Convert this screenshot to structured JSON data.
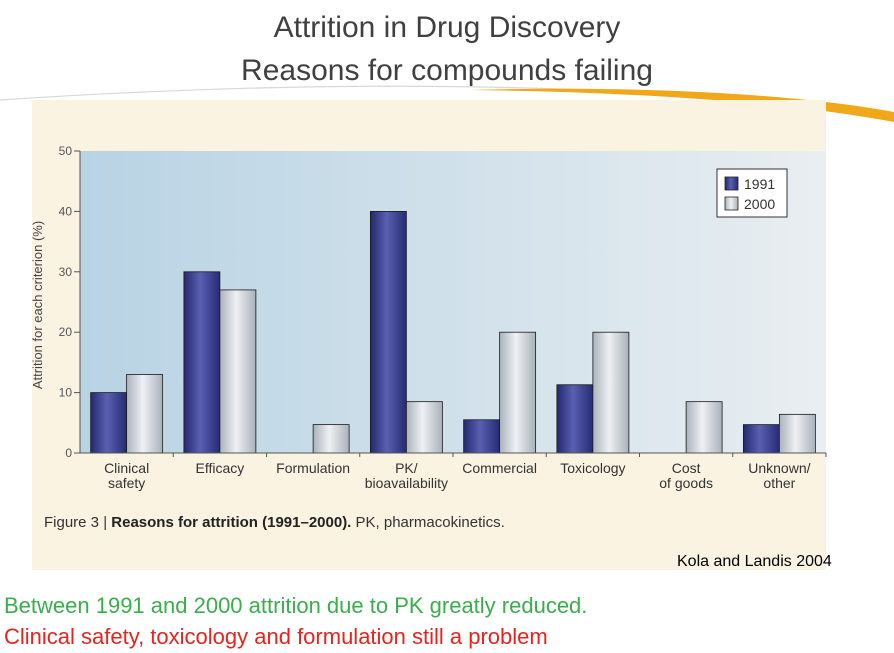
{
  "slide": {
    "title_line1": "Attrition in Drug Discovery",
    "title_line2": "Reasons for compounds failing",
    "citation": "Kola and Landis 2004",
    "note_green": "Between 1991 and 2000 attrition due to PK greatly reduced.",
    "note_red": "Clinical safety, toxicology and formulation still a problem"
  },
  "colors": {
    "bar_1991": "#3a3f8f",
    "bar_2000": "#c9cfd6",
    "note_green": "#3aae4c",
    "note_red": "#e8231d",
    "accent_swoosh": "#f0a818"
  },
  "caption": {
    "figure_label": "Figure 3 | ",
    "bold_text": "Reasons for attrition (1991–2000).",
    "rest_text": " PK, pharmacokinetics."
  },
  "chart_data": {
    "type": "bar",
    "categories": [
      [
        "Clinical",
        "safety"
      ],
      [
        "Efficacy"
      ],
      [
        "Formulation"
      ],
      [
        "PK/",
        "bioavailability"
      ],
      [
        "Commercial"
      ],
      [
        "Toxicology"
      ],
      [
        "Cost",
        "of goods"
      ],
      [
        "Unknown/",
        "other"
      ]
    ],
    "series": [
      {
        "name": "1991",
        "values": [
          10,
          30,
          0,
          40,
          5.5,
          11.3,
          0,
          4.7
        ]
      },
      {
        "name": "2000",
        "values": [
          13,
          27,
          4.7,
          8.5,
          20,
          20,
          8.5,
          6.4
        ]
      }
    ],
    "ylabel": "Attrition for each criterion (%)",
    "xlabel": "",
    "ylim": [
      0,
      50
    ],
    "yticks": [
      0,
      10,
      20,
      30,
      40,
      50
    ],
    "legend": "top-right"
  }
}
